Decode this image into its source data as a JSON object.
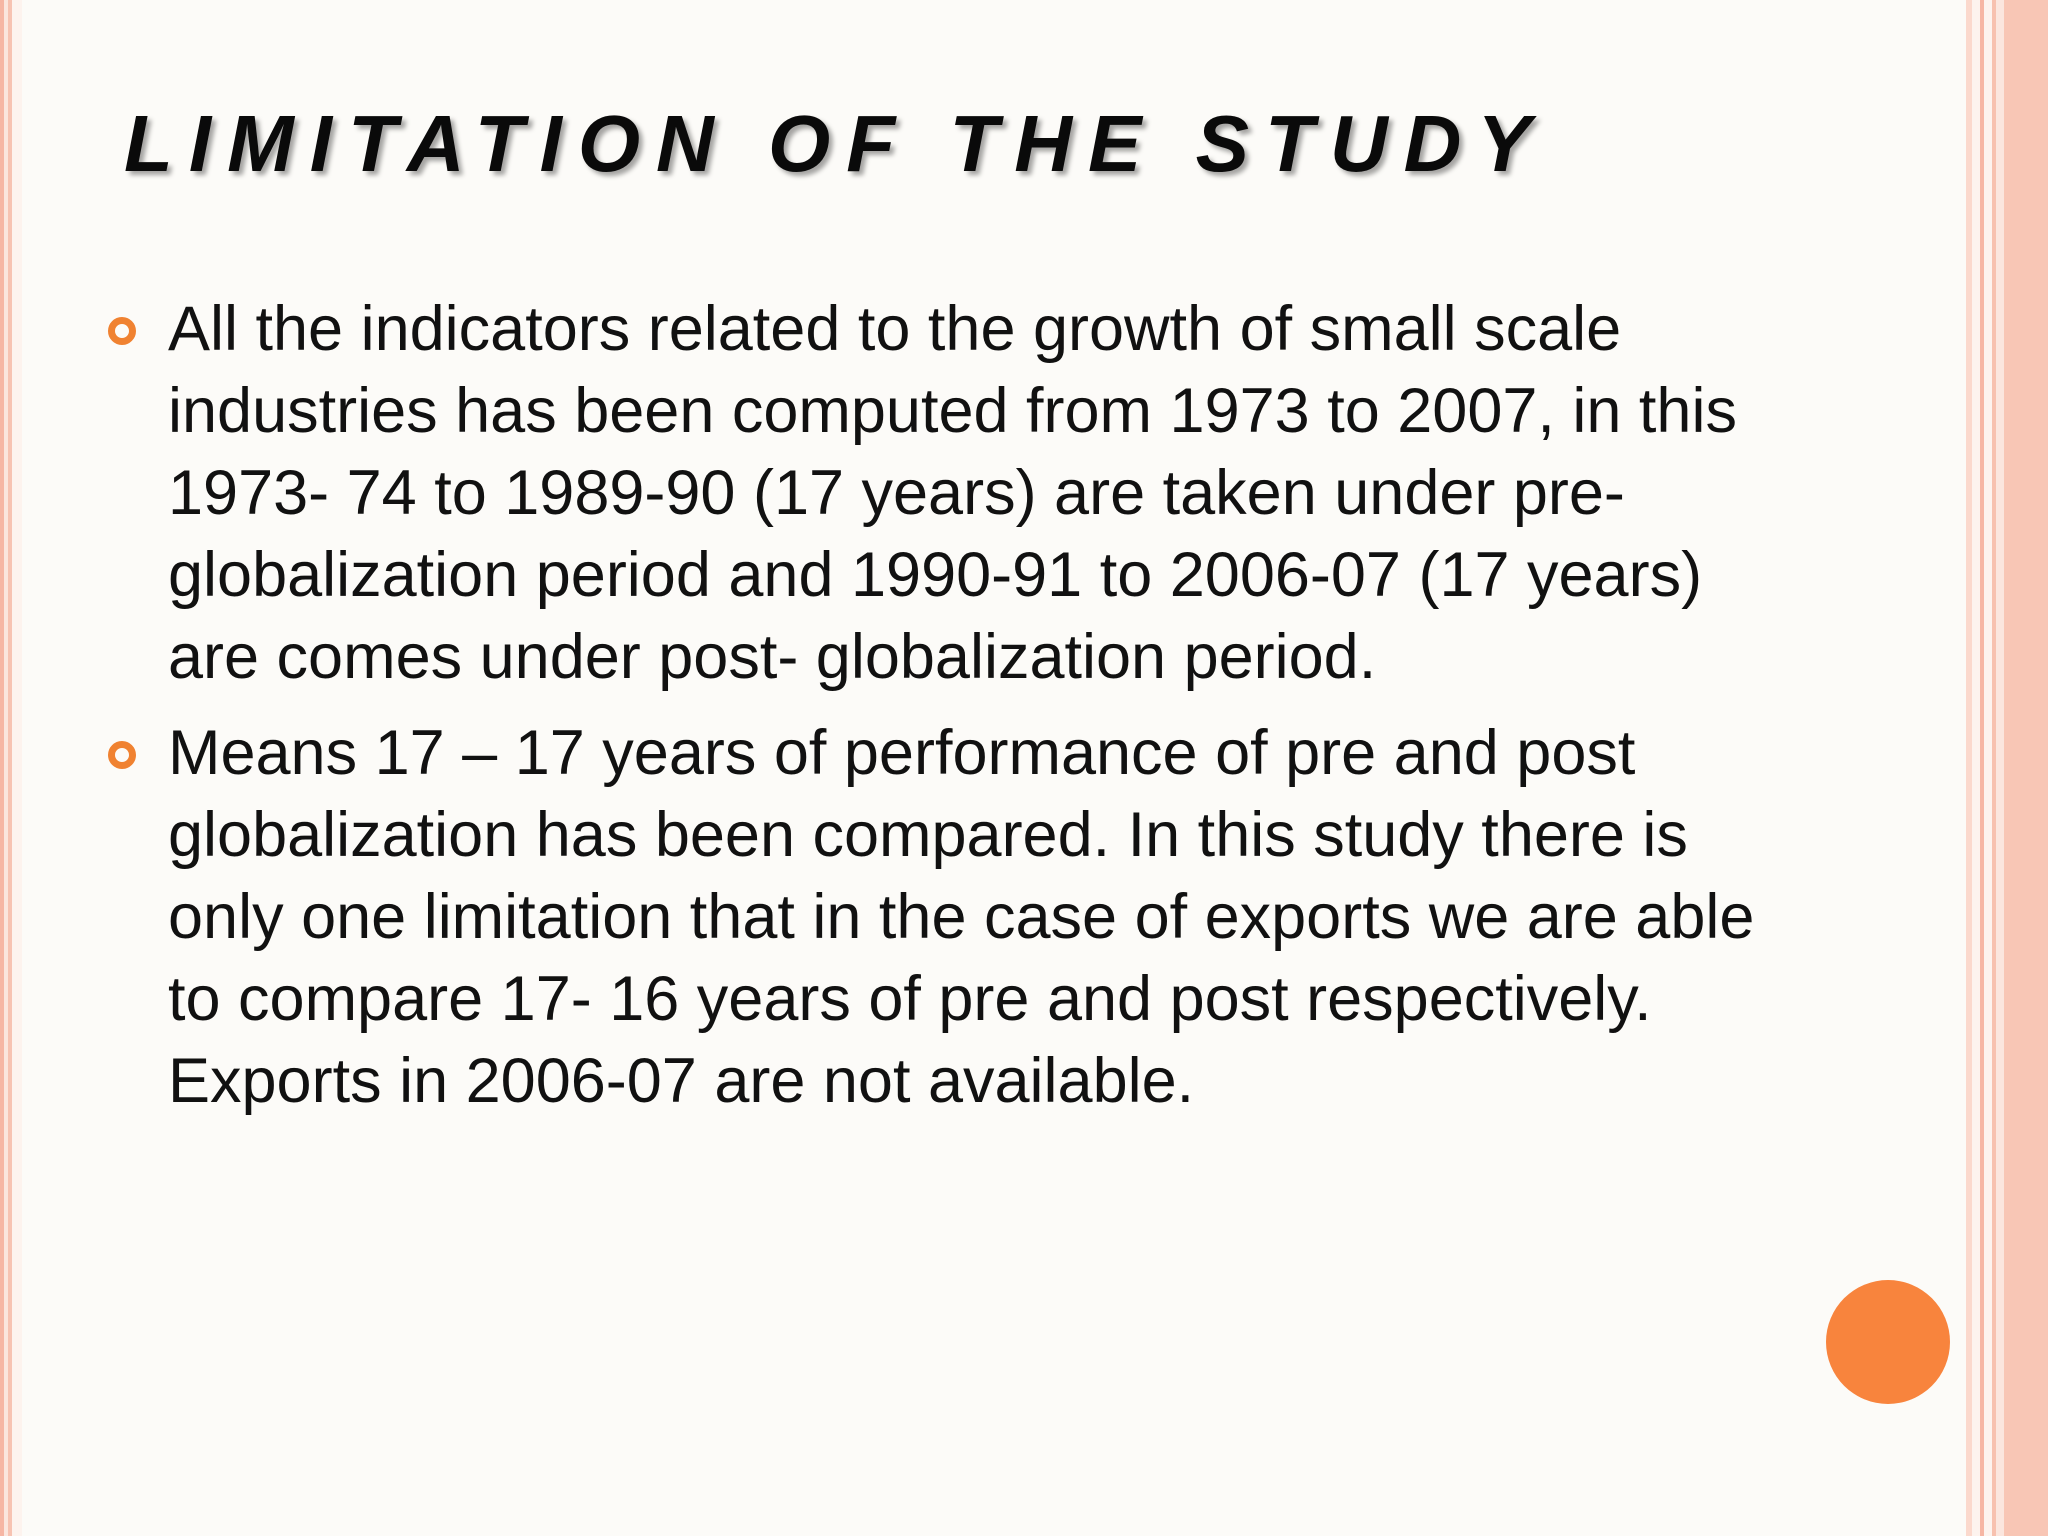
{
  "slide": {
    "title": "LIMITATION OF THE STUDY",
    "accent_color": "#f08231",
    "bullets": [
      {
        "lines": [
          "All the indicators related to the growth of small scale",
          "industries has been computed from 1973 to 2007, in this",
          "1973- 74 to 1989-90 (17 years) are taken under pre-",
          "globalization period and 1990-91 to 2006-07 (17 years)",
          "are comes under post- globalization period."
        ]
      },
      {
        "lines": [
          "Means 17 – 17 years of performance of pre and post",
          "globalization has been compared. In this study there is",
          "only one limitation that in the case of exports we are able",
          "to compare 17- 16 years of pre and post respectively.",
          "Exports in 2006-07 are not available."
        ]
      }
    ],
    "decoration": {
      "circle_color": "#f8843d",
      "border_color": "#f6b6a4"
    }
  }
}
